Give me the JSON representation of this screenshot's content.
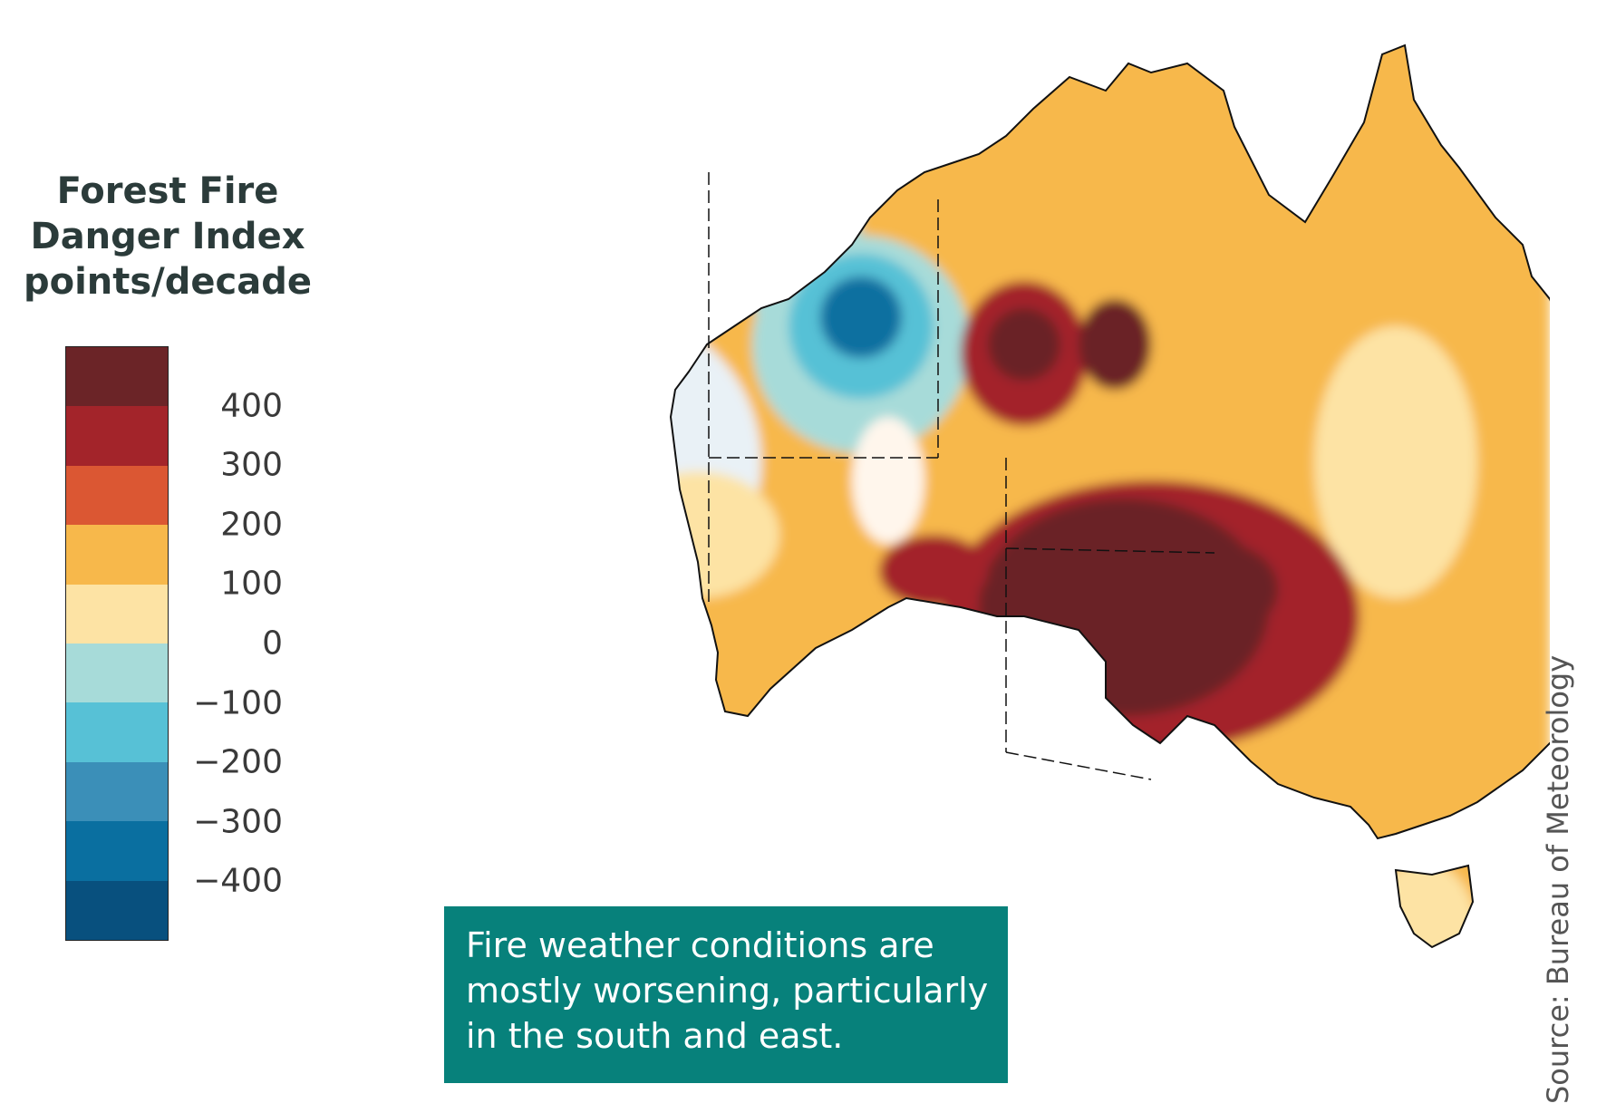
{
  "legend": {
    "title_lines": [
      "Forest Fire",
      "Danger Index",
      "points/decade"
    ],
    "bins": [
      {
        "color": "#6b2427"
      },
      {
        "color": "#a3242a"
      },
      {
        "color": "#db5733"
      },
      {
        "color": "#f7b84b"
      },
      {
        "color": "#fde3a4"
      },
      {
        "color": "#a7dbd9"
      },
      {
        "color": "#57c1d6"
      },
      {
        "color": "#3b8fb8"
      },
      {
        "color": "#0a6fa0"
      },
      {
        "color": "#08507e"
      }
    ],
    "ticks": [
      {
        "label": "400",
        "frac": 0.1
      },
      {
        "label": "300",
        "frac": 0.2
      },
      {
        "label": "200",
        "frac": 0.3
      },
      {
        "label": "100",
        "frac": 0.4
      },
      {
        "label": "0",
        "frac": 0.5
      },
      {
        "label": "−100",
        "frac": 0.6
      },
      {
        "label": "−200",
        "frac": 0.7
      },
      {
        "label": "−300",
        "frac": 0.8
      },
      {
        "label": "−400",
        "frac": 0.9
      }
    ]
  },
  "note": {
    "lines": [
      "Fire weather conditions are",
      "mostly worsening, particularly",
      "in the south and east."
    ]
  },
  "source": "Source: Bureau of Meteorology",
  "colors": {
    "note_background": "#07817b"
  }
}
